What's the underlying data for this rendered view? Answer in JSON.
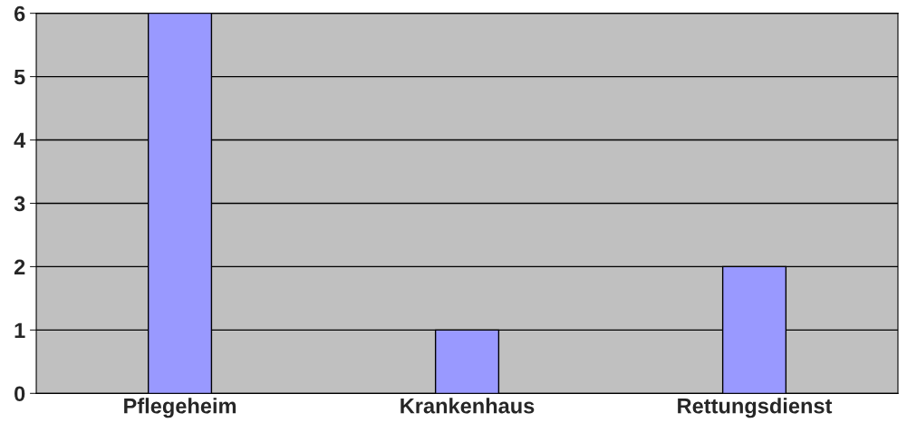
{
  "chart_data": {
    "type": "bar",
    "categories": [
      "Pflegeheim",
      "Krankenhaus",
      "Rettungsdienst"
    ],
    "values": [
      6,
      1,
      2
    ],
    "color": "#9999ff",
    "ylim": [
      0,
      6
    ],
    "yticks": [
      0,
      1,
      2,
      3,
      4,
      5,
      6
    ],
    "grid": "y"
  }
}
